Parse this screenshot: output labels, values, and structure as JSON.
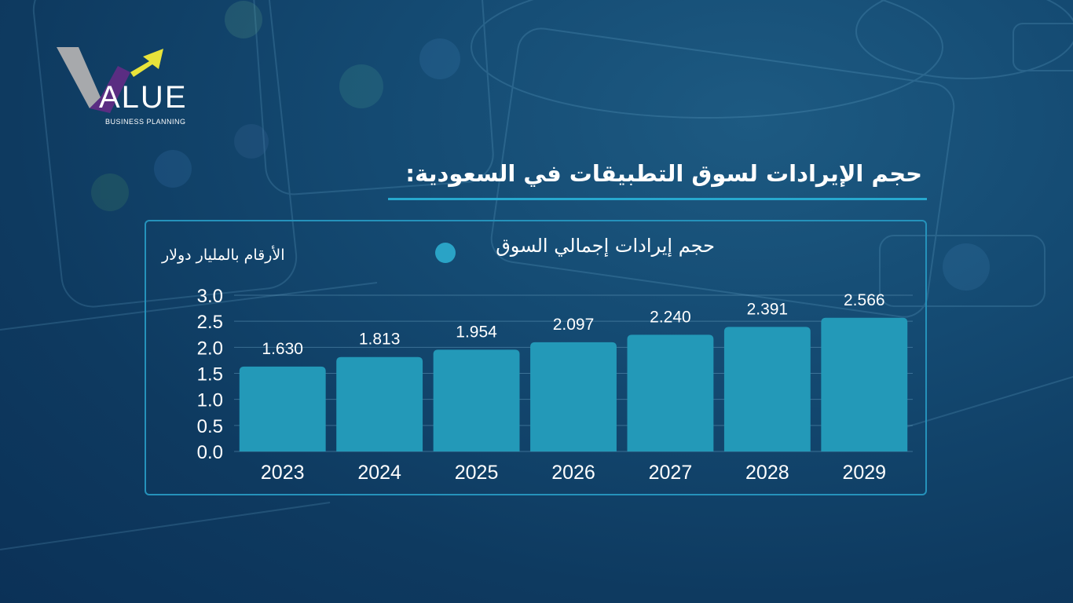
{
  "logo": {
    "wordmark": "ALUE",
    "subtitle": "BUSINESS PLANNING"
  },
  "title": "حجم الإيرادات لسوق التطبيقات في السعودية:",
  "colors": {
    "bar": "#2399b8",
    "accent": "#27a9cf",
    "logo_gray": "#a7a9ac",
    "logo_purple": "#5a2d82",
    "logo_yellow": "#e8e33a"
  },
  "chart_data": {
    "type": "bar",
    "unit_label": "الأرقام بالمليار دولار",
    "categories": [
      "2023",
      "2024",
      "2025",
      "2026",
      "2027",
      "2028",
      "2029"
    ],
    "series": [
      {
        "name": "حجم إيرادات إجمالي السوق",
        "values": [
          1.63,
          1.813,
          1.954,
          2.097,
          2.24,
          2.391,
          2.566
        ],
        "labels": [
          "1.630",
          "1.813",
          "1.954",
          "2.097",
          "2.240",
          "2.391",
          "2.566"
        ]
      }
    ],
    "ylim": [
      0,
      3.0
    ],
    "yticks": [
      "0.0",
      "0.5",
      "1.0",
      "1.5",
      "2.0",
      "2.5",
      "3.0"
    ],
    "grid": true,
    "legend_position": "top"
  }
}
